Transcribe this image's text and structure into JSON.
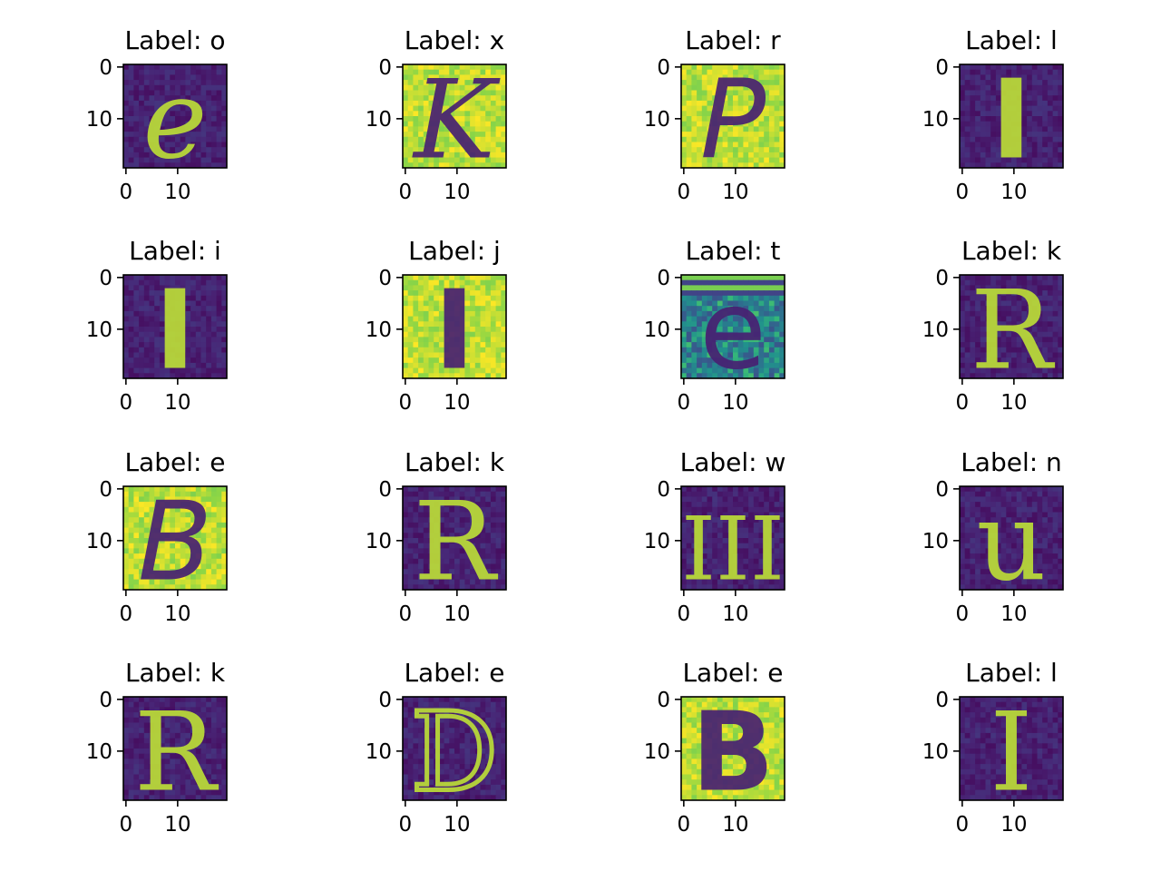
{
  "chart_data": {
    "type": "heatmap",
    "colormap": "viridis",
    "grid": false,
    "image_size": [
      20,
      20
    ],
    "x_ticks": [
      "0",
      "10"
    ],
    "y_ticks": [
      "0",
      "10"
    ],
    "panels": [
      {
        "title": "Label: o",
        "glyph": "e",
        "style": "serif-italic",
        "bg": "dark",
        "fg": "light"
      },
      {
        "title": "Label: x",
        "glyph": "K",
        "style": "serif-italic",
        "bg": "light",
        "fg": "dark"
      },
      {
        "title": "Label: r",
        "glyph": "P",
        "style": "sans-italic",
        "bg": "light",
        "fg": "dark"
      },
      {
        "title": "Label: l",
        "glyph": "I",
        "style": "block",
        "bg": "dark",
        "fg": "light"
      },
      {
        "title": "Label: i",
        "glyph": "I",
        "style": "block",
        "bg": "dark",
        "fg": "light"
      },
      {
        "title": "Label: j",
        "glyph": "I",
        "style": "block",
        "bg": "light",
        "fg": "dark"
      },
      {
        "title": "Label: t",
        "glyph": "e",
        "style": "noisy",
        "bg": "mid",
        "fg": "dark"
      },
      {
        "title": "Label: k",
        "glyph": "R",
        "style": "serif",
        "bg": "dark",
        "fg": "light"
      },
      {
        "title": "Label: e",
        "glyph": "B",
        "style": "sans-italic",
        "bg": "light",
        "fg": "dark"
      },
      {
        "title": "Label: k",
        "glyph": "R",
        "style": "serif",
        "bg": "dark",
        "fg": "light"
      },
      {
        "title": "Label: w",
        "glyph": "III",
        "style": "serif",
        "bg": "dark",
        "fg": "light"
      },
      {
        "title": "Label: n",
        "glyph": "u",
        "style": "serif",
        "bg": "dark",
        "fg": "light"
      },
      {
        "title": "Label: k",
        "glyph": "R",
        "style": "serif",
        "bg": "dark",
        "fg": "light"
      },
      {
        "title": "Label: e",
        "glyph": "D",
        "style": "outline",
        "bg": "dark",
        "fg": "light"
      },
      {
        "title": "Label: e",
        "glyph": "B",
        "style": "block",
        "bg": "light",
        "fg": "dark"
      },
      {
        "title": "Label: l",
        "glyph": "I",
        "style": "serif",
        "bg": "dark",
        "fg": "light"
      }
    ]
  }
}
